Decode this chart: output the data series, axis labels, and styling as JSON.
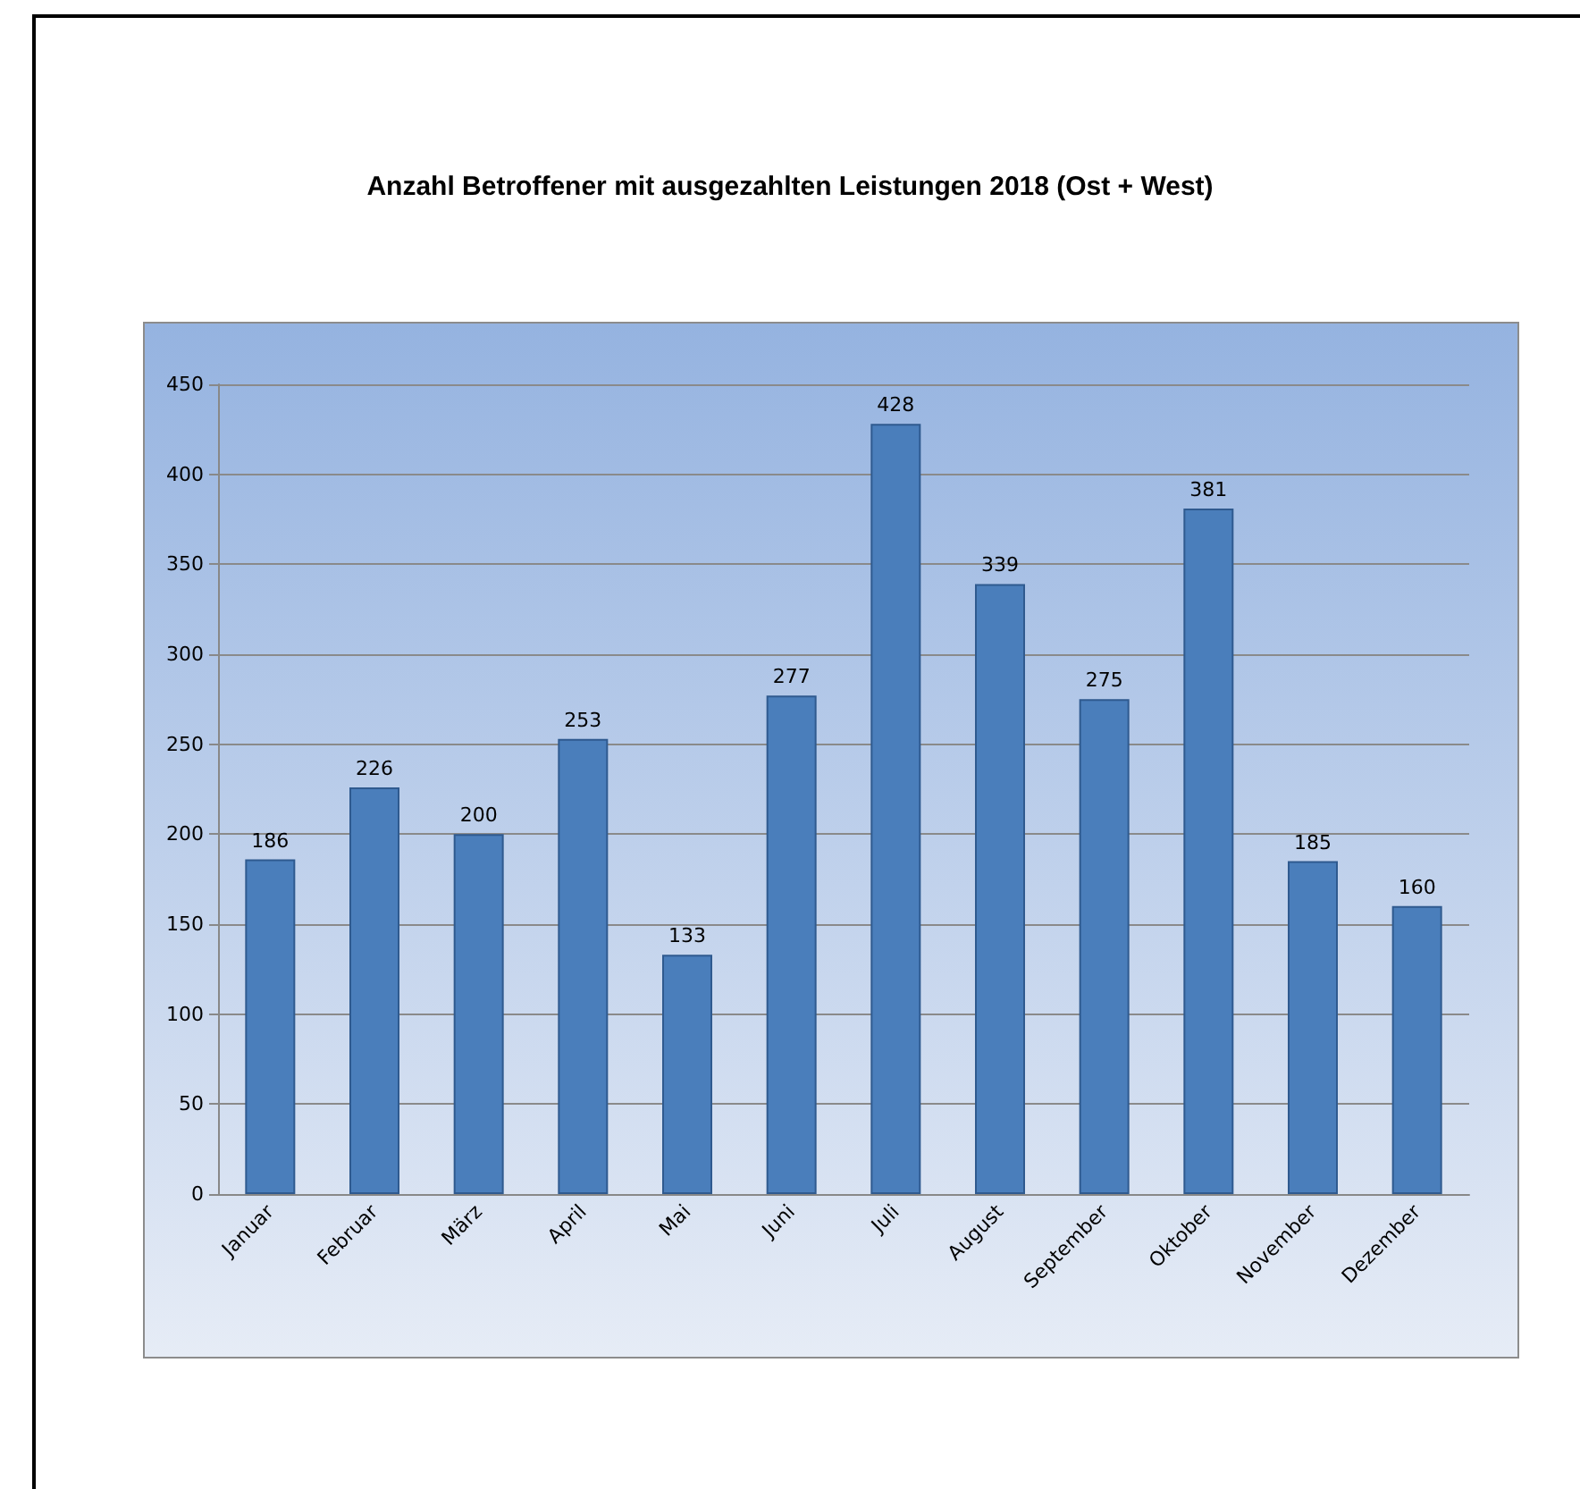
{
  "chart_data": {
    "type": "bar",
    "title": "Anzahl Betroffener mit ausgezahlten Leistungen 2018 (Ost + West)",
    "categories": [
      "Januar",
      "Februar",
      "März",
      "April",
      "Mai",
      "Juni",
      "Juli",
      "August",
      "September",
      "Oktober",
      "November",
      "Dezember"
    ],
    "values": [
      186,
      226,
      200,
      253,
      133,
      277,
      428,
      339,
      275,
      381,
      185,
      160
    ],
    "color": "#4a7ebb",
    "ylim": [
      0,
      450
    ],
    "yticks": [
      0,
      50,
      100,
      150,
      200,
      250,
      300,
      350,
      400,
      450
    ],
    "grid": "y",
    "data_labels": true
  }
}
